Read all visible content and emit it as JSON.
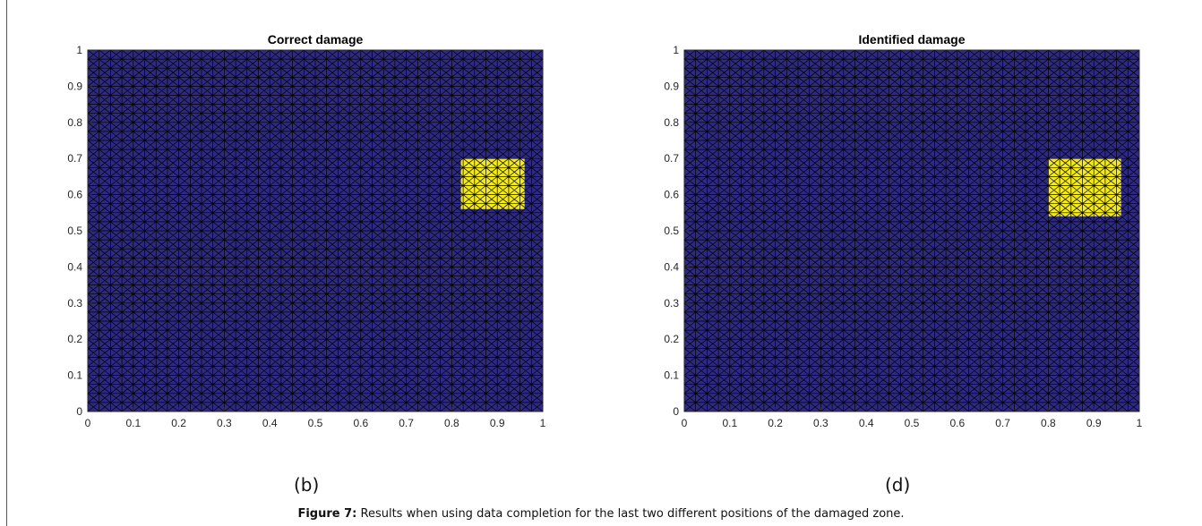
{
  "colors": {
    "background": "#2e2a83",
    "damaged": "#f3ea1d",
    "mesh": "#000000"
  },
  "chart_data": [
    {
      "type": "heatmap",
      "title": "Correct damage",
      "xlabel": "",
      "ylabel": "",
      "xlim": [
        0,
        1
      ],
      "ylim": [
        0,
        1
      ],
      "xticks": [
        "0",
        "0.1",
        "0.2",
        "0.3",
        "0.4",
        "0.5",
        "0.6",
        "0.7",
        "0.8",
        "0.9",
        "1"
      ],
      "yticks": [
        "0",
        "0.1",
        "0.2",
        "0.3",
        "0.4",
        "0.5",
        "0.6",
        "0.7",
        "0.8",
        "0.9",
        "1"
      ],
      "mesh_divisions": 40,
      "damaged_region": {
        "x": [
          0.82,
          0.96
        ],
        "y": [
          0.56,
          0.7
        ]
      },
      "panel_label": "(b)"
    },
    {
      "type": "heatmap",
      "title": "Identified damage",
      "xlabel": "",
      "ylabel": "",
      "xlim": [
        0,
        1
      ],
      "ylim": [
        0,
        1
      ],
      "xticks": [
        "0",
        "0.1",
        "0.2",
        "0.3",
        "0.4",
        "0.5",
        "0.6",
        "0.7",
        "0.8",
        "0.9",
        "1"
      ],
      "yticks": [
        "0",
        "0.1",
        "0.2",
        "0.3",
        "0.4",
        "0.5",
        "0.6",
        "0.7",
        "0.8",
        "0.9",
        "1"
      ],
      "mesh_divisions": 40,
      "damaged_region": {
        "x": [
          0.8,
          0.96
        ],
        "y": [
          0.54,
          0.7
        ]
      },
      "panel_label": "(d)"
    }
  ],
  "caption": {
    "label": "Figure 7:",
    "text": " Results when using data completion for the last two different positions of the damaged zone."
  }
}
